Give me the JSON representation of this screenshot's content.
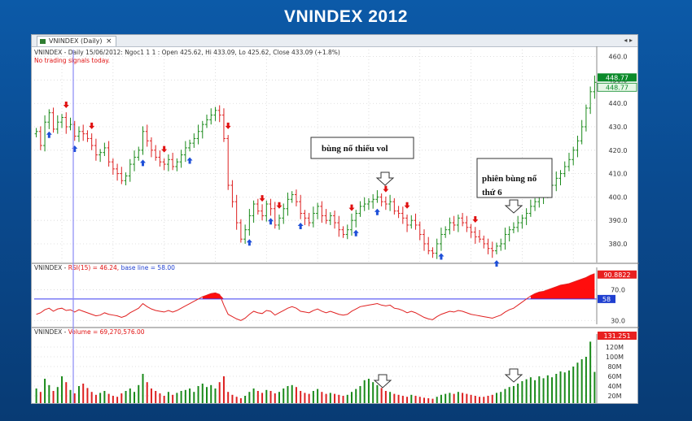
{
  "slide_title": "VNINDEX 2012",
  "window": {
    "tab_label": "VNINDEX (Daily)",
    "close_glyph": "×",
    "nav_glyph": "◂ ▸"
  },
  "chart_data": [
    {
      "type": "candlestick",
      "header": "VNINDEX - Daily 15/06/2012: Ngoc1 1 1 : Open 425.62, Hi 433.09, Lo 425.62, Close 433.09 (+1.8%)",
      "status": "No trading signals today.",
      "ylim": [
        372,
        463
      ],
      "y_ticks": [
        380.0,
        390.0,
        400.0,
        410.0,
        420.0,
        430.0,
        440.0,
        450.0,
        460.0
      ],
      "last_value_tags": [
        "448.77",
        "448.77"
      ],
      "closes": [
        428,
        422,
        432,
        436,
        429,
        432,
        434,
        430,
        431,
        426,
        428,
        427,
        425,
        422,
        418,
        419,
        421,
        415,
        412,
        410,
        407,
        409,
        414,
        417,
        420,
        428,
        424,
        420,
        417,
        415,
        414,
        416,
        413,
        415,
        418,
        421,
        423,
        425,
        428,
        431,
        433,
        435,
        437,
        435,
        425,
        405,
        398,
        389,
        382,
        386,
        392,
        397,
        394,
        392,
        397,
        395,
        388,
        391,
        395,
        399,
        401,
        398,
        393,
        391,
        389,
        393,
        396,
        392,
        390,
        392,
        389,
        386,
        384,
        386,
        390,
        393,
        396,
        397,
        398,
        399,
        400,
        398,
        397,
        398,
        394,
        393,
        391,
        388,
        390,
        388,
        384,
        380,
        377,
        376,
        380,
        384,
        386,
        389,
        388,
        391,
        389,
        387,
        385,
        383,
        382,
        380,
        378,
        377,
        379,
        380,
        384,
        386,
        387,
        389,
        391,
        393,
        396,
        398,
        400,
        401,
        403,
        405,
        408,
        410,
        413,
        416,
        420,
        424,
        430,
        438,
        445,
        449
      ],
      "annotations": [
        {
          "text": "bùng nổ thiếu vol"
        },
        {
          "text": "phiên bùng nổ thứ 6"
        }
      ]
    },
    {
      "type": "line",
      "header_name": "VNINDEX",
      "header_indicator": "RSI(15) = 46.24,",
      "header_base": "base line = 58.00",
      "ylim": [
        25,
        95
      ],
      "y_ticks": [
        30.0,
        70.0
      ],
      "baseline": 58,
      "baseline_tag": "58",
      "last_value_tag": "90.8822",
      "values": [
        38,
        40,
        44,
        46,
        42,
        45,
        46,
        43,
        44,
        41,
        44,
        42,
        40,
        38,
        36,
        37,
        40,
        38,
        37,
        36,
        34,
        36,
        40,
        43,
        46,
        52,
        48,
        45,
        43,
        42,
        41,
        43,
        41,
        43,
        46,
        49,
        52,
        55,
        58,
        61,
        63,
        65,
        66,
        64,
        50,
        38,
        35,
        32,
        30,
        33,
        38,
        42,
        40,
        39,
        43,
        42,
        37,
        40,
        43,
        46,
        48,
        46,
        42,
        41,
        40,
        43,
        45,
        42,
        40,
        42,
        40,
        38,
        37,
        38,
        42,
        45,
        48,
        49,
        50,
        51,
        52,
        50,
        49,
        50,
        46,
        45,
        43,
        40,
        42,
        40,
        37,
        34,
        32,
        31,
        35,
        38,
        40,
        42,
        41,
        43,
        42,
        40,
        38,
        37,
        36,
        35,
        34,
        33,
        35,
        37,
        41,
        44,
        46,
        50,
        54,
        58,
        62,
        65,
        67,
        68,
        70,
        72,
        74,
        76,
        77,
        78,
        80,
        82,
        84,
        86,
        89,
        91
      ]
    },
    {
      "type": "bar",
      "header_name": "VNINDEX",
      "header_indicator": "Volume = 69,270,576.00",
      "ylim": [
        5,
        140
      ],
      "y_ticks": [
        "20M",
        "40M",
        "60M",
        "80M",
        "100M",
        "120M"
      ],
      "y_tick_values": [
        20,
        40,
        60,
        80,
        100,
        120
      ],
      "last_value_tag": "131.251",
      "values": [
        35,
        28,
        55,
        42,
        30,
        38,
        60,
        48,
        32,
        25,
        40,
        45,
        36,
        28,
        22,
        26,
        30,
        24,
        20,
        18,
        25,
        30,
        35,
        28,
        42,
        65,
        48,
        35,
        30,
        25,
        20,
        28,
        22,
        26,
        30,
        32,
        35,
        28,
        40,
        45,
        38,
        42,
        35,
        48,
        60,
        28,
        22,
        18,
        15,
        20,
        28,
        35,
        30,
        26,
        32,
        30,
        25,
        28,
        35,
        40,
        42,
        38,
        30,
        26,
        24,
        30,
        34,
        28,
        24,
        26,
        24,
        22,
        20,
        22,
        28,
        34,
        40,
        52,
        55,
        48,
        42,
        36,
        30,
        28,
        24,
        22,
        20,
        18,
        22,
        20,
        18,
        16,
        15,
        14,
        18,
        22,
        24,
        26,
        24,
        28,
        26,
        24,
        22,
        20,
        18,
        18,
        20,
        22,
        26,
        28,
        34,
        38,
        40,
        45,
        50,
        54,
        58,
        52,
        60,
        56,
        62,
        58,
        65,
        70,
        68,
        72,
        80,
        88,
        95,
        100,
        131,
        69
      ]
    }
  ],
  "colors": {
    "up": "#1a8a1a",
    "down": "#dd2020",
    "signal_buy": "#1e4fd8",
    "signal_sell": "#e01010",
    "rsi_line": "#e02020",
    "rsi_fill": "#ff0000",
    "baseline": "#3a3af0",
    "cursor": "#8a8af5",
    "tag_green": "#0b8a2a",
    "tag_red": "#e82020",
    "tag_blue": "#1f3fd0",
    "grid": "#d6d6d6"
  }
}
